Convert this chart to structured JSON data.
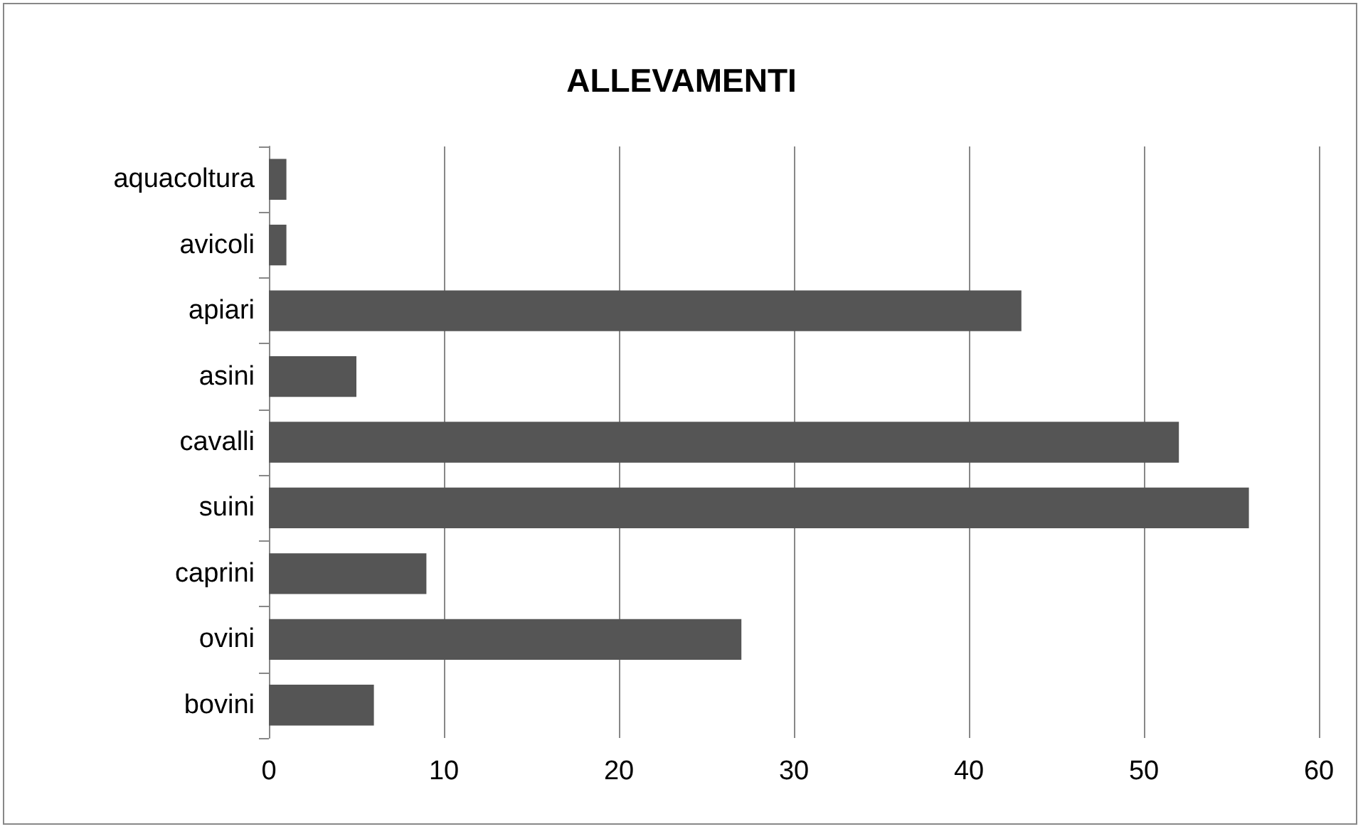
{
  "chart_data": {
    "type": "bar",
    "title": "ALLEVAMENTI",
    "orientation": "horizontal",
    "categories": [
      "aquacoltura",
      "avicoli",
      "apiari",
      "asini",
      "cavalli",
      "suini",
      "caprini",
      "ovini",
      "bovini"
    ],
    "values": [
      1,
      1,
      43,
      5,
      52,
      56,
      9,
      27,
      6
    ],
    "color": "#555555",
    "xlim": [
      0,
      60
    ],
    "xticks": [
      0,
      10,
      20,
      30,
      40,
      50,
      60
    ],
    "grid": "x"
  }
}
